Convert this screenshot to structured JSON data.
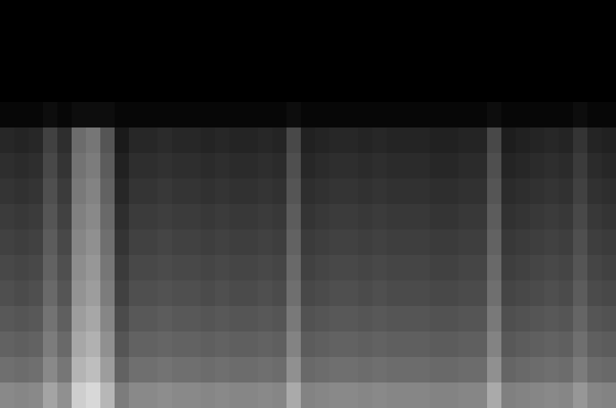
{
  "chart_data": {
    "type": "heatmap",
    "color": "#d8d8d8",
    "tick_labels": false,
    "cells": [
      [
        0,
        0,
        0,
        0,
        0,
        0,
        0,
        0,
        0,
        0,
        0,
        0,
        0,
        0,
        0,
        0,
        0,
        0,
        0,
        0,
        0,
        0,
        0,
        0,
        0,
        0,
        0,
        0,
        0,
        0,
        0,
        0,
        0,
        0,
        0,
        0,
        0,
        0,
        0,
        0,
        0,
        0,
        0
      ],
      [
        0,
        0,
        0,
        0,
        0,
        0,
        0,
        0,
        0,
        0,
        0,
        0,
        0,
        0,
        0,
        0,
        0,
        0,
        0,
        0,
        0,
        0,
        0,
        0,
        0,
        0,
        0,
        0,
        0,
        0,
        0,
        0,
        0,
        0,
        0,
        0,
        0,
        0,
        0,
        0,
        0,
        0,
        0
      ],
      [
        0,
        0,
        0,
        0,
        0,
        0,
        0,
        0,
        0,
        0,
        0,
        0,
        0,
        0,
        0,
        0,
        0,
        0,
        0,
        0,
        0,
        0,
        0,
        0,
        0,
        0,
        0,
        0,
        0,
        0,
        0,
        0,
        0,
        0,
        0,
        0,
        0,
        0,
        0,
        0,
        0,
        0,
        0
      ],
      [
        0,
        0,
        0,
        0,
        0,
        0,
        0,
        0,
        0,
        0,
        0,
        0,
        0,
        0,
        0,
        0,
        0,
        0,
        0,
        0,
        0,
        0,
        0,
        0,
        0,
        0,
        0,
        0,
        0,
        0,
        0,
        0,
        0,
        0,
        0,
        0,
        0,
        0,
        0,
        0,
        0,
        0,
        0
      ],
      [
        2,
        2,
        2,
        4,
        2,
        4,
        4,
        4,
        2,
        2,
        2,
        2,
        2,
        2,
        2,
        2,
        2,
        2,
        2,
        2,
        4,
        2,
        2,
        2,
        2,
        2,
        2,
        2,
        2,
        2,
        2,
        2,
        2,
        2,
        4,
        2,
        2,
        2,
        2,
        2,
        4,
        2,
        2
      ],
      [
        12,
        11,
        12,
        20,
        14,
        33,
        36,
        26,
        8,
        12,
        12,
        13,
        12,
        12,
        11,
        12,
        11,
        11,
        12,
        11,
        22,
        10,
        11,
        12,
        12,
        11,
        12,
        11,
        11,
        11,
        10,
        10,
        11,
        11,
        22,
        9,
        10,
        11,
        12,
        11,
        16,
        11,
        10
      ],
      [
        14,
        13,
        14,
        22,
        16,
        35,
        38,
        28,
        10,
        14,
        14,
        15,
        14,
        14,
        13,
        14,
        13,
        13,
        14,
        13,
        24,
        12,
        13,
        14,
        14,
        13,
        14,
        13,
        13,
        13,
        12,
        12,
        13,
        13,
        24,
        11,
        12,
        13,
        14,
        13,
        18,
        13,
        12
      ],
      [
        16,
        15,
        16,
        24,
        18,
        37,
        40,
        30,
        12,
        16,
        16,
        17,
        16,
        16,
        15,
        16,
        15,
        15,
        16,
        15,
        26,
        14,
        15,
        16,
        16,
        15,
        16,
        15,
        15,
        15,
        14,
        14,
        15,
        15,
        26,
        13,
        14,
        15,
        16,
        15,
        20,
        15,
        14
      ],
      [
        18,
        17,
        18,
        26,
        20,
        39,
        42,
        32,
        14,
        18,
        18,
        19,
        18,
        18,
        17,
        18,
        17,
        17,
        18,
        17,
        28,
        16,
        17,
        18,
        18,
        17,
        18,
        17,
        17,
        17,
        16,
        16,
        17,
        17,
        28,
        15,
        16,
        17,
        18,
        17,
        22,
        17,
        16
      ],
      [
        20,
        19,
        20,
        28,
        22,
        41,
        44,
        34,
        16,
        20,
        20,
        21,
        20,
        20,
        19,
        20,
        19,
        19,
        20,
        19,
        30,
        18,
        19,
        20,
        20,
        19,
        20,
        19,
        19,
        19,
        18,
        18,
        19,
        19,
        30,
        17,
        18,
        19,
        20,
        19,
        24,
        19,
        18
      ],
      [
        22,
        21,
        22,
        30,
        24,
        43,
        46,
        36,
        18,
        22,
        22,
        23,
        22,
        22,
        21,
        22,
        21,
        21,
        22,
        21,
        32,
        20,
        21,
        22,
        22,
        21,
        22,
        21,
        21,
        21,
        20,
        20,
        21,
        21,
        32,
        19,
        20,
        21,
        22,
        21,
        26,
        21,
        20
      ],
      [
        24,
        23,
        24,
        32,
        26,
        45,
        48,
        38,
        20,
        24,
        24,
        25,
        24,
        24,
        23,
        24,
        23,
        23,
        24,
        23,
        34,
        22,
        23,
        24,
        24,
        23,
        24,
        23,
        23,
        23,
        22,
        22,
        23,
        23,
        34,
        21,
        22,
        23,
        24,
        23,
        28,
        23,
        22
      ],
      [
        27,
        26,
        27,
        35,
        29,
        48,
        51,
        41,
        23,
        27,
        27,
        28,
        27,
        27,
        26,
        27,
        26,
        26,
        27,
        26,
        37,
        25,
        26,
        27,
        27,
        26,
        27,
        26,
        26,
        26,
        25,
        25,
        26,
        26,
        37,
        24,
        25,
        26,
        27,
        26,
        31,
        26,
        25
      ],
      [
        30,
        29,
        30,
        38,
        32,
        51,
        54,
        44,
        26,
        30,
        30,
        31,
        30,
        30,
        29,
        30,
        29,
        29,
        30,
        29,
        40,
        28,
        29,
        30,
        30,
        29,
        30,
        29,
        29,
        29,
        28,
        28,
        29,
        29,
        40,
        27,
        28,
        29,
        30,
        29,
        34,
        29,
        28
      ],
      [
        34,
        33,
        34,
        42,
        36,
        55,
        58,
        48,
        30,
        34,
        34,
        35,
        34,
        34,
        33,
        34,
        33,
        33,
        34,
        33,
        44,
        32,
        33,
        34,
        34,
        33,
        34,
        33,
        33,
        33,
        32,
        32,
        33,
        33,
        44,
        31,
        32,
        33,
        34,
        33,
        38,
        33,
        32
      ],
      [
        42,
        41,
        42,
        50,
        44,
        63,
        66,
        56,
        38,
        42,
        42,
        43,
        42,
        42,
        41,
        42,
        41,
        41,
        42,
        41,
        52,
        40,
        41,
        42,
        42,
        41,
        42,
        41,
        41,
        41,
        40,
        40,
        41,
        41,
        52,
        39,
        40,
        41,
        42,
        41,
        46,
        41,
        40
      ]
    ]
  }
}
